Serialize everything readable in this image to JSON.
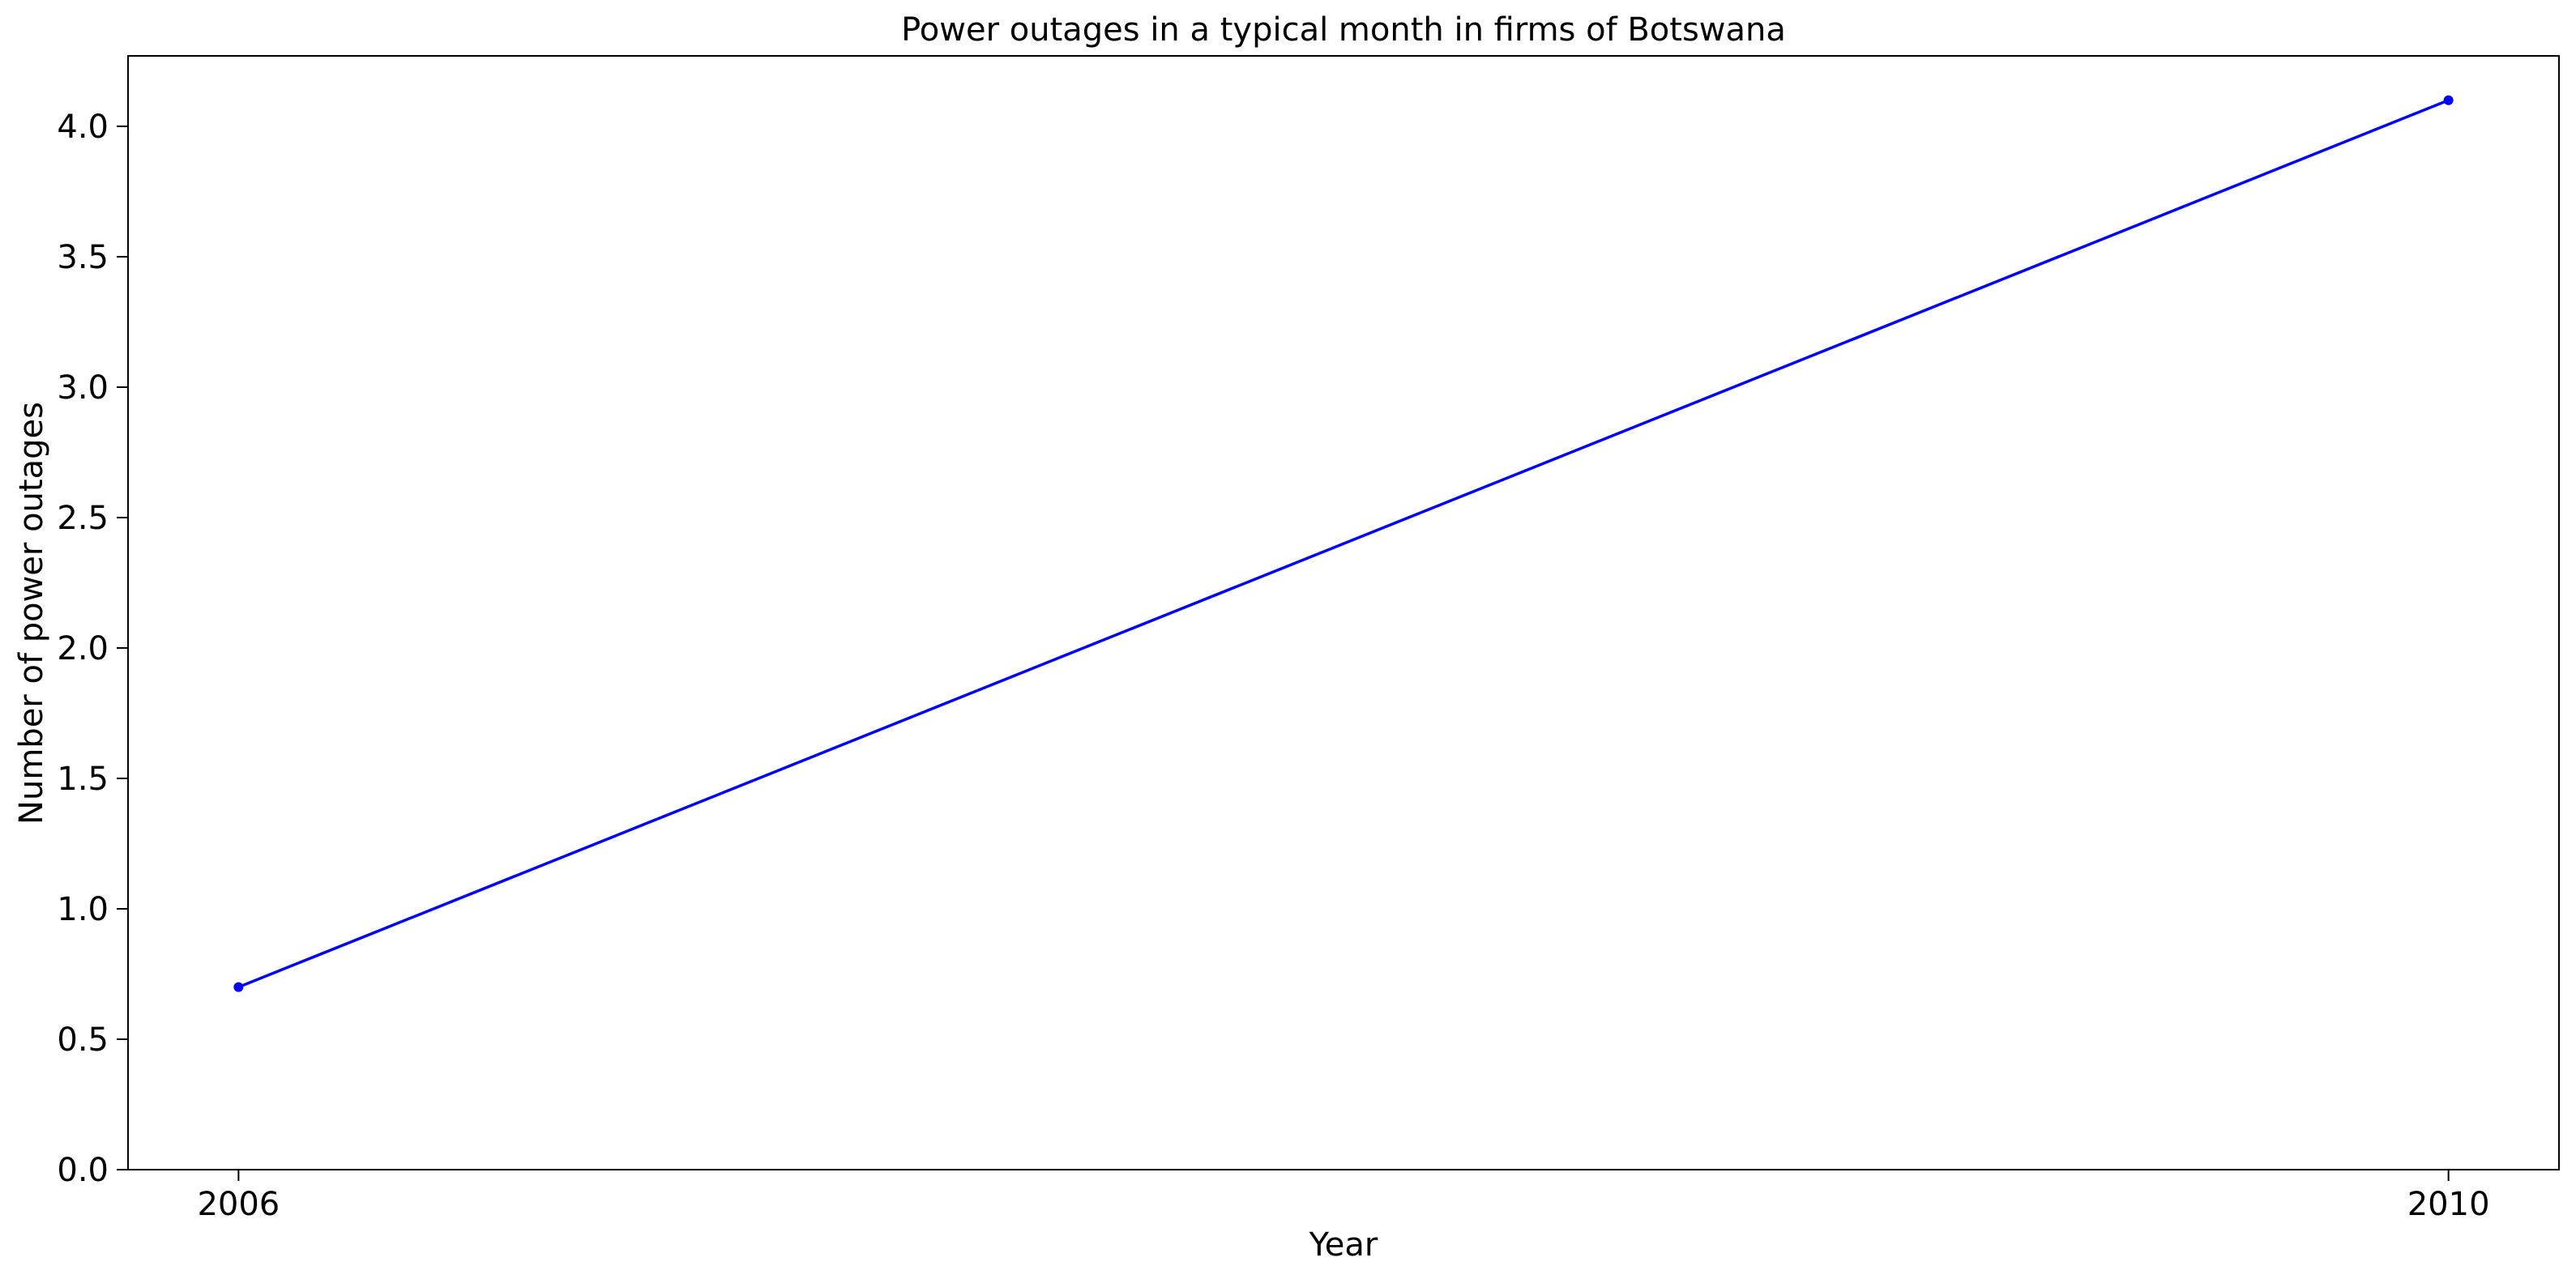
{
  "chart_data": {
    "type": "line",
    "title": "Power outages in a typical month in firms of Botswana",
    "xlabel": "Year",
    "ylabel": "Number of power outages",
    "categories": [
      "2006",
      "2010"
    ],
    "series": [
      {
        "name": "Power outages",
        "color": "#0000ff",
        "values": [
          0.7,
          4.1
        ]
      }
    ],
    "xlim": [
      2005.8,
      2010.2
    ],
    "ylim": [
      0,
      4.27
    ],
    "yticks": [
      0.0,
      0.5,
      1.0,
      1.5,
      2.0,
      2.5,
      3.0,
      3.5,
      4.0
    ],
    "ytick_labels": [
      "0.0",
      "0.5",
      "1.0",
      "1.5",
      "2.0",
      "2.5",
      "3.0",
      "3.5",
      "4.0"
    ],
    "xticks": [
      2006,
      2010
    ],
    "xtick_labels": [
      "2006",
      "2010"
    ],
    "grid": false,
    "legend": "none"
  }
}
